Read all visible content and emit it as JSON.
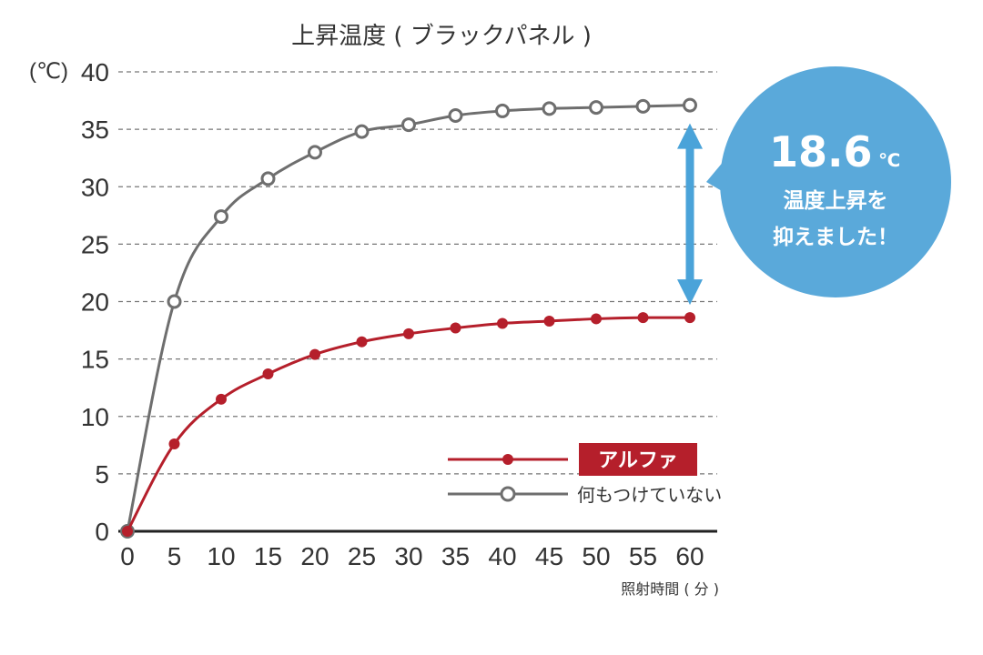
{
  "chart_data": {
    "type": "line",
    "title": "上昇温度 ( ブラックパネル )",
    "xlabel": "照射時間 ( 分 )",
    "ylabel": "(℃)",
    "x": [
      0,
      5,
      10,
      15,
      20,
      25,
      30,
      35,
      40,
      45,
      50,
      55,
      60
    ],
    "x_tick_labels": [
      "0",
      "5",
      "10",
      "15",
      "20",
      "25",
      "30",
      "35",
      "40",
      "45",
      "50",
      "55",
      "60"
    ],
    "y_tick_labels": [
      "0",
      "5",
      "10",
      "15",
      "20",
      "25",
      "30",
      "35",
      "40"
    ],
    "xlim": [
      0,
      60
    ],
    "ylim": [
      0,
      40
    ],
    "grid": true,
    "legend_position": "bottom-right",
    "series": [
      {
        "name": "アルファ",
        "color": "#b51f2b",
        "marker": "filled-circle",
        "values": [
          0,
          7.6,
          11.5,
          13.7,
          15.4,
          16.5,
          17.2,
          17.7,
          18.1,
          18.3,
          18.5,
          18.6,
          18.6
        ]
      },
      {
        "name": "何もつけていない",
        "color": "#6e6e6e",
        "marker": "open-circle",
        "values": [
          0,
          20.0,
          27.4,
          30.7,
          33.0,
          34.8,
          35.4,
          36.2,
          36.6,
          36.8,
          36.9,
          37.0,
          37.1
        ]
      }
    ],
    "annotation": {
      "value": "18.6",
      "unit": "℃",
      "lines": [
        "温度上昇を",
        "抑えました！"
      ],
      "bubble_color": "#5aa9da",
      "arrow_color": "#4aa3d9",
      "arrow_x": 60
    }
  }
}
